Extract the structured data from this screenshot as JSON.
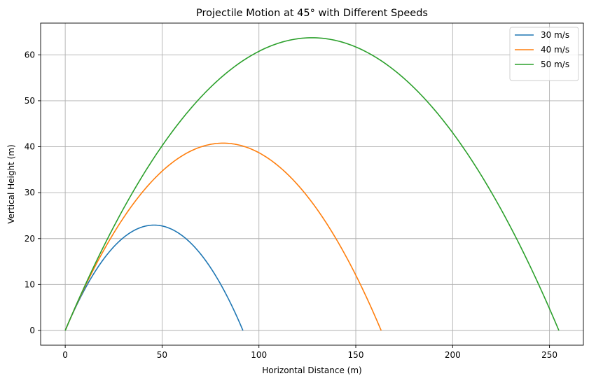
{
  "chart_data": {
    "type": "line",
    "title": "Projectile Motion at 45° with Different Speeds",
    "xlabel": "Horizontal Distance (m)",
    "ylabel": "Vertical Height (m)",
    "xlim": [
      -12.7,
      267.5
    ],
    "ylim": [
      -3.2,
      66.9
    ],
    "xticks": [
      0,
      50,
      100,
      150,
      200,
      250
    ],
    "yticks": [
      0,
      10,
      20,
      30,
      40,
      50,
      60
    ],
    "grid": true,
    "legend_position": "top-right",
    "gravity": 9.81,
    "launch_angle_deg": 45,
    "series": [
      {
        "name": "30 m/s",
        "speed": 30,
        "color": "#1f77b4"
      },
      {
        "name": "40 m/s",
        "speed": 40,
        "color": "#ff7f0e"
      },
      {
        "name": "50 m/s",
        "speed": 50,
        "color": "#2ca02c"
      }
    ]
  }
}
